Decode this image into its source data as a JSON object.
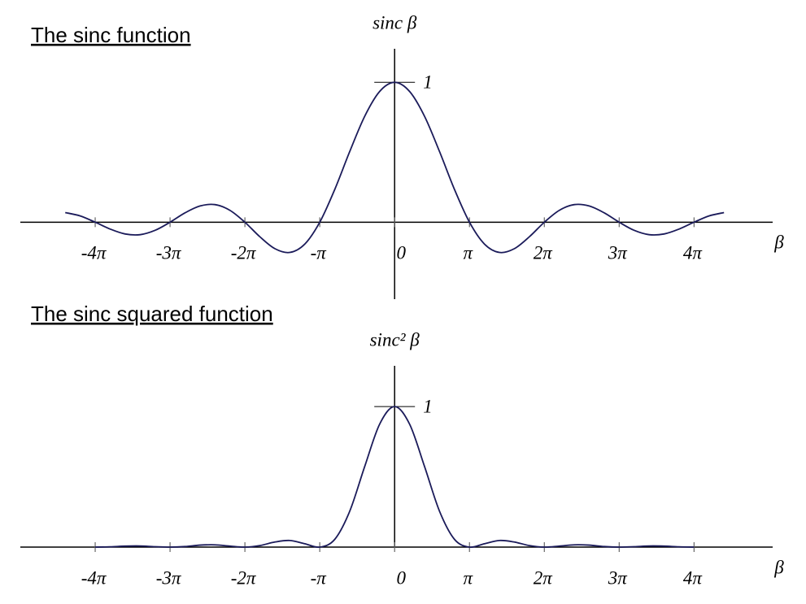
{
  "chart_data": [
    {
      "type": "line",
      "title": "The sinc function",
      "ylabel": "sinc β",
      "xlabel": "β",
      "x": [
        -4.4,
        -4.2,
        -4,
        -3.8,
        -3.6,
        -3.4,
        -3.2,
        -3,
        -2.8,
        -2.6,
        -2.4,
        -2.2,
        -2,
        -1.8,
        -1.6,
        -1.4,
        -1.2,
        -1,
        -0.8,
        -0.6,
        -0.4,
        -0.2,
        0,
        0.2,
        0.4,
        0.6,
        0.8,
        1,
        1.2,
        1.4,
        1.6,
        1.8,
        2,
        2.2,
        2.4,
        2.6,
        2.8,
        3,
        3.2,
        3.4,
        3.6,
        3.8,
        4,
        4.2,
        4.4
      ],
      "series": [
        {
          "color": "#1b1b5a",
          "values": [
            0.069,
            0.045,
            0,
            -0.049,
            -0.084,
            -0.089,
            -0.058,
            0,
            0.067,
            0.116,
            0.126,
            0.085,
            0,
            -0.104,
            -0.189,
            -0.216,
            -0.156,
            0,
            0.234,
            0.505,
            0.757,
            0.935,
            1,
            0.935,
            0.757,
            0.505,
            0.234,
            0,
            -0.156,
            -0.216,
            -0.189,
            -0.104,
            0,
            0.085,
            0.126,
            0.116,
            0.067,
            0,
            -0.058,
            -0.089,
            -0.084,
            -0.049,
            0,
            0.045,
            0.069
          ]
        }
      ],
      "xlim": [
        -5,
        5.05
      ],
      "ylim": [
        -0.55,
        1.24
      ],
      "xticks": [
        {
          "value": -4,
          "label": "-4π"
        },
        {
          "value": -3,
          "label": "-3π"
        },
        {
          "value": -2,
          "label": "-2π"
        },
        {
          "value": -1,
          "label": "-π"
        },
        0,
        {
          "value": 1,
          "label": "π"
        },
        {
          "value": 2,
          "label": "2π"
        },
        {
          "value": 3,
          "label": "3π"
        },
        {
          "value": 4,
          "label": "4π"
        }
      ],
      "yticks": [
        1
      ]
    },
    {
      "type": "line",
      "title": "The sinc squared function",
      "ylabel": "sinc² β",
      "xlabel": "β",
      "x": [
        -4,
        -3.8,
        -3.6,
        -3.4,
        -3.2,
        -3,
        -2.8,
        -2.6,
        -2.4,
        -2.2,
        -2,
        -1.8,
        -1.6,
        -1.4,
        -1.2,
        -1,
        -0.8,
        -0.6,
        -0.4,
        -0.2,
        0,
        0.2,
        0.4,
        0.6,
        0.8,
        1,
        1.2,
        1.4,
        1.6,
        1.8,
        2,
        2.2,
        2.4,
        2.6,
        2.8,
        3,
        3.2,
        3.4,
        3.6,
        3.8,
        4
      ],
      "series": [
        {
          "color": "#1b1b5a",
          "values": [
            0,
            0.002,
            0.007,
            0.008,
            0.003,
            0,
            0.004,
            0.014,
            0.016,
            0.007,
            0,
            0.011,
            0.036,
            0.047,
            0.024,
            0,
            0.055,
            0.255,
            0.573,
            0.875,
            1,
            0.875,
            0.573,
            0.255,
            0.055,
            0,
            0.024,
            0.047,
            0.036,
            0.011,
            0,
            0.007,
            0.016,
            0.014,
            0.004,
            0,
            0.003,
            0.008,
            0.007,
            0.002,
            0
          ]
        }
      ],
      "xlim": [
        -5,
        5.05
      ],
      "ylim": [
        0,
        1.29
      ],
      "xticks": [
        {
          "value": -4,
          "label": "-4π"
        },
        {
          "value": -3,
          "label": "-3π"
        },
        {
          "value": -2,
          "label": "-2π"
        },
        {
          "value": -1,
          "label": "-π"
        },
        0,
        {
          "value": 1,
          "label": "π"
        },
        {
          "value": 2,
          "label": "2π"
        },
        {
          "value": 3,
          "label": "3π"
        },
        {
          "value": 4,
          "label": "4π"
        }
      ],
      "yticks": [
        1
      ]
    }
  ]
}
